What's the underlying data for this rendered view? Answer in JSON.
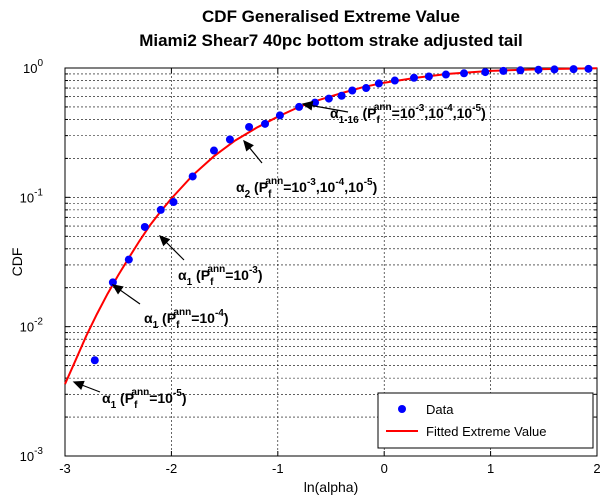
{
  "chart_data": {
    "type": "scatter",
    "title": "CDF Generalised Extreme Value",
    "subtitle": "Miami2 Shear7 40pc bottom strake adjusted tail",
    "xlabel": "ln(alpha)",
    "ylabel": "CDF",
    "xlim": [
      -3,
      2
    ],
    "ylim": [
      0.001,
      1
    ],
    "yscale": "log",
    "grid": true,
    "legend_position": "bottom-right",
    "x_ticks": [
      "-3",
      "-2",
      "-1",
      "0",
      "1",
      "2"
    ],
    "y_ticks": [
      {
        "base": "10",
        "exp": "-3"
      },
      {
        "base": "10",
        "exp": "-2"
      },
      {
        "base": "10",
        "exp": "-1"
      },
      {
        "base": "10",
        "exp": "0"
      }
    ],
    "series": [
      {
        "name": "Data",
        "kind": "markers",
        "color": "#0000ff",
        "x": [
          -2.72,
          -2.55,
          -2.4,
          -2.25,
          -2.1,
          -1.98,
          -1.8,
          -1.6,
          -1.45,
          -1.27,
          -1.12,
          -0.98,
          -0.8,
          -0.65,
          -0.52,
          -0.4,
          -0.3,
          -0.17,
          -0.05,
          0.1,
          0.28,
          0.42,
          0.58,
          0.75,
          0.95,
          1.12,
          1.28,
          1.45,
          1.6,
          1.78,
          1.92
        ],
        "y": [
          0.0055,
          0.022,
          0.033,
          0.059,
          0.08,
          0.092,
          0.145,
          0.23,
          0.28,
          0.35,
          0.37,
          0.43,
          0.5,
          0.54,
          0.58,
          0.61,
          0.67,
          0.7,
          0.76,
          0.8,
          0.84,
          0.86,
          0.89,
          0.91,
          0.93,
          0.95,
          0.96,
          0.97,
          0.975,
          0.98,
          0.985
        ]
      },
      {
        "name": "Fitted Extreme Value",
        "kind": "line",
        "color": "#ff0000",
        "x": [
          -3.0,
          -2.9,
          -2.8,
          -2.7,
          -2.6,
          -2.5,
          -2.4,
          -2.3,
          -2.2,
          -2.1,
          -2.0,
          -1.8,
          -1.6,
          -1.4,
          -1.2,
          -1.0,
          -0.8,
          -0.6,
          -0.4,
          -0.2,
          0.0,
          0.3,
          0.6,
          1.0,
          1.5,
          2.0
        ],
        "y": [
          0.0036,
          0.0055,
          0.0085,
          0.0125,
          0.018,
          0.025,
          0.034,
          0.046,
          0.061,
          0.078,
          0.098,
          0.148,
          0.208,
          0.275,
          0.345,
          0.42,
          0.5,
          0.57,
          0.64,
          0.71,
          0.77,
          0.84,
          0.9,
          0.95,
          0.98,
          0.995
        ]
      }
    ],
    "annotations": [
      {
        "x": -0.7,
        "y": 0.52,
        "sub": "1-16",
        "values": "10^-3,10^-4,10^-5"
      },
      {
        "x": -1.2,
        "y": 0.29,
        "sub": "2",
        "values": "10^-3,10^-4,10^-5"
      },
      {
        "x": -2.1,
        "y": 0.055,
        "sub": "1",
        "values": "10^-3"
      },
      {
        "x": -2.55,
        "y": 0.021,
        "sub": "1",
        "values": "10^-4"
      },
      {
        "x": -2.98,
        "y": 0.0037,
        "sub": "1",
        "values": "10^-5"
      }
    ]
  },
  "legend": {
    "items": [
      {
        "label": "Data",
        "color": "#0000ff",
        "kind": "marker"
      },
      {
        "label": "Fitted Extreme Value",
        "color": "#ff0000",
        "kind": "line"
      }
    ]
  }
}
